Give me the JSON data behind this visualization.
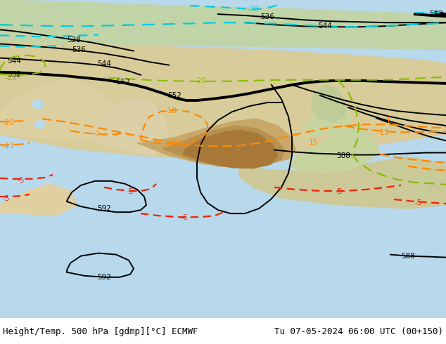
{
  "title_left": "Height/Temp. 500 hPa [gdmp][°C] ECMWF",
  "title_right": "Tu 07-05-2024 06:00 UTC (00+150)",
  "title_fontsize": 9,
  "title_color": "#000000",
  "background_color": "#ffffff",
  "fig_width": 6.34,
  "fig_height": 4.9,
  "dpi": 100,
  "colors": {
    "geopotential": "#000000",
    "temp_cyan": "#00ccdd",
    "temp_green": "#88bb00",
    "temp_orange": "#ff8800",
    "temp_red": "#ee2200",
    "ocean": "#a8cce0",
    "land_green": "#b8d0a0",
    "land_tan": "#d8c89a",
    "land_brown": "#c8a070",
    "land_darkbrown": "#b07840",
    "land_light": "#e8dbc0"
  }
}
